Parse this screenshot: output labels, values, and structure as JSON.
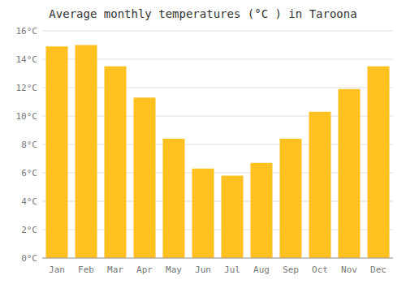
{
  "chart_data": {
    "type": "bar",
    "title": "Average monthly temperatures (°C ) in Taroona",
    "categories": [
      "Jan",
      "Feb",
      "Mar",
      "Apr",
      "May",
      "Jun",
      "Jul",
      "Aug",
      "Sep",
      "Oct",
      "Nov",
      "Dec"
    ],
    "values": [
      14.9,
      15.0,
      13.5,
      11.3,
      8.4,
      6.3,
      5.8,
      6.7,
      8.4,
      10.3,
      11.9,
      13.5
    ],
    "color": "#FFC020",
    "ylim": [
      0,
      16
    ],
    "yticks": [
      {
        "value": 0,
        "label": "0°C"
      },
      {
        "value": 2,
        "label": "2°C"
      },
      {
        "value": 4,
        "label": "4°C"
      },
      {
        "value": 6,
        "label": "6°C"
      },
      {
        "value": 8,
        "label": "8°C"
      },
      {
        "value": 10,
        "label": "10°C"
      },
      {
        "value": 12,
        "label": "12°C"
      },
      {
        "value": 14,
        "label": "14°C"
      },
      {
        "value": 16,
        "label": "16°C"
      }
    ],
    "grid": true
  }
}
